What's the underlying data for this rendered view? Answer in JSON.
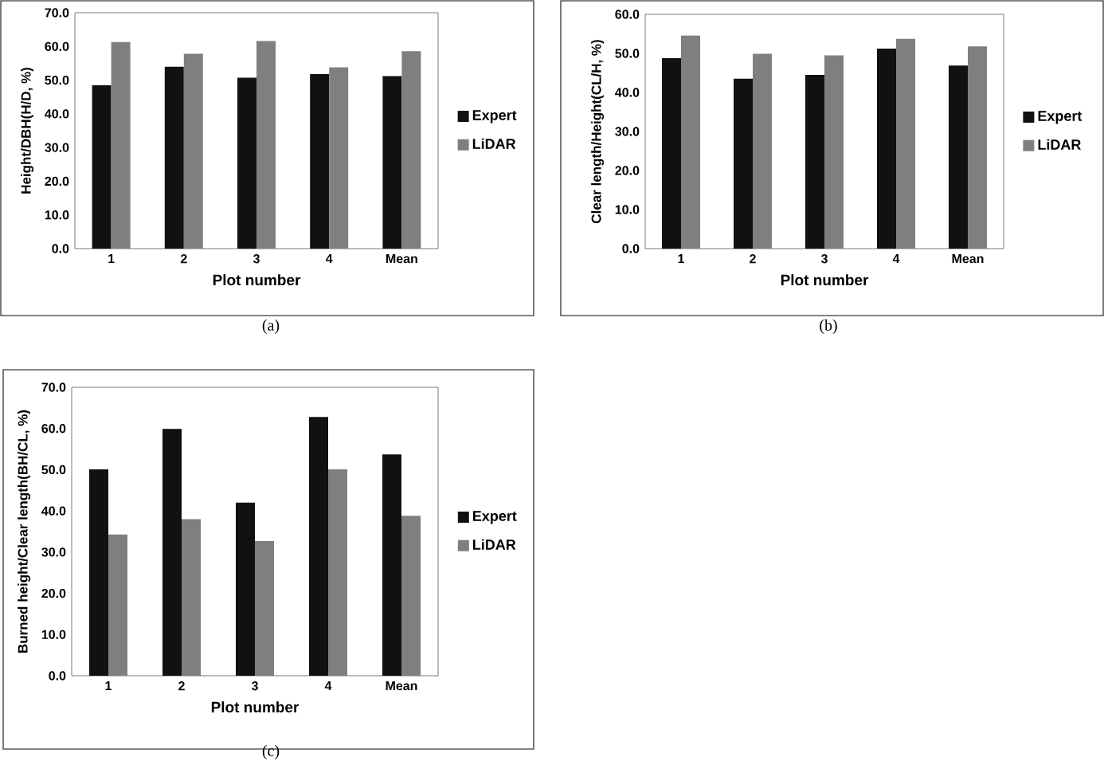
{
  "chart_data": [
    {
      "type": "bar",
      "xlabel": "Plot number",
      "ylabel": "Height/DBH(H/D, %)",
      "categories": [
        "1",
        "2",
        "3",
        "4",
        "Mean"
      ],
      "series": [
        {
          "name": "Expert",
          "color": "#111111",
          "values": [
            48.5,
            54.0,
            50.7,
            51.8,
            51.2
          ]
        },
        {
          "name": "LiDAR",
          "color": "#7f7f7f",
          "values": [
            61.3,
            57.8,
            61.6,
            53.8,
            58.6
          ]
        }
      ],
      "ylim": [
        0,
        70
      ],
      "yticks": [
        {
          "value": 0,
          "label": "0.0"
        },
        {
          "value": 10,
          "label": "10.0"
        },
        {
          "value": 20,
          "label": "20.0"
        },
        {
          "value": 30,
          "label": "30.0"
        },
        {
          "value": 40,
          "label": "40.0"
        },
        {
          "value": 50,
          "label": "50.0"
        },
        {
          "value": 60,
          "label": "60.0"
        },
        {
          "value": 70,
          "label": "70.0"
        }
      ],
      "legend": "right",
      "annotations": [
        "(a)"
      ]
    },
    {
      "type": "bar",
      "xlabel": "Plot number",
      "ylabel": "Clear length/Height(CL/H, %)",
      "categories": [
        "1",
        "2",
        "3",
        "4",
        "Mean"
      ],
      "series": [
        {
          "name": "Expert",
          "color": "#111111",
          "values": [
            48.8,
            43.5,
            44.5,
            51.2,
            46.9
          ]
        },
        {
          "name": "LiDAR",
          "color": "#7f7f7f",
          "values": [
            54.6,
            49.9,
            49.5,
            53.7,
            51.8
          ]
        }
      ],
      "ylim": [
        0,
        60
      ],
      "yticks": [
        {
          "value": 0,
          "label": "0.0"
        },
        {
          "value": 10,
          "label": "10.0"
        },
        {
          "value": 20,
          "label": "20.0"
        },
        {
          "value": 30,
          "label": "30.0"
        },
        {
          "value": 40,
          "label": "40.0"
        },
        {
          "value": 50,
          "label": "50.0"
        },
        {
          "value": 60,
          "label": "60.0"
        }
      ],
      "legend": "right",
      "annotations": [
        "(b)"
      ]
    },
    {
      "type": "bar",
      "xlabel": "Plot number",
      "ylabel": "Burned height/Clear length(BH/CL, %)",
      "categories": [
        "1",
        "2",
        "3",
        "4",
        "Mean"
      ],
      "series": [
        {
          "name": "Expert",
          "color": "#111111",
          "values": [
            50.1,
            59.9,
            42.0,
            62.8,
            53.7
          ]
        },
        {
          "name": "LiDAR",
          "color": "#7f7f7f",
          "values": [
            34.3,
            38.0,
            32.7,
            50.1,
            38.8
          ]
        }
      ],
      "ylim": [
        0,
        70
      ],
      "yticks": [
        {
          "value": 0,
          "label": "0.0"
        },
        {
          "value": 10,
          "label": "10.0"
        },
        {
          "value": 20,
          "label": "20.0"
        },
        {
          "value": 30,
          "label": "30.0"
        },
        {
          "value": 40,
          "label": "40.0"
        },
        {
          "value": 50,
          "label": "50.0"
        },
        {
          "value": 60,
          "label": "60.0"
        },
        {
          "value": 70,
          "label": "70.0"
        }
      ],
      "legend": "right",
      "annotations": [
        "(c)"
      ]
    }
  ]
}
